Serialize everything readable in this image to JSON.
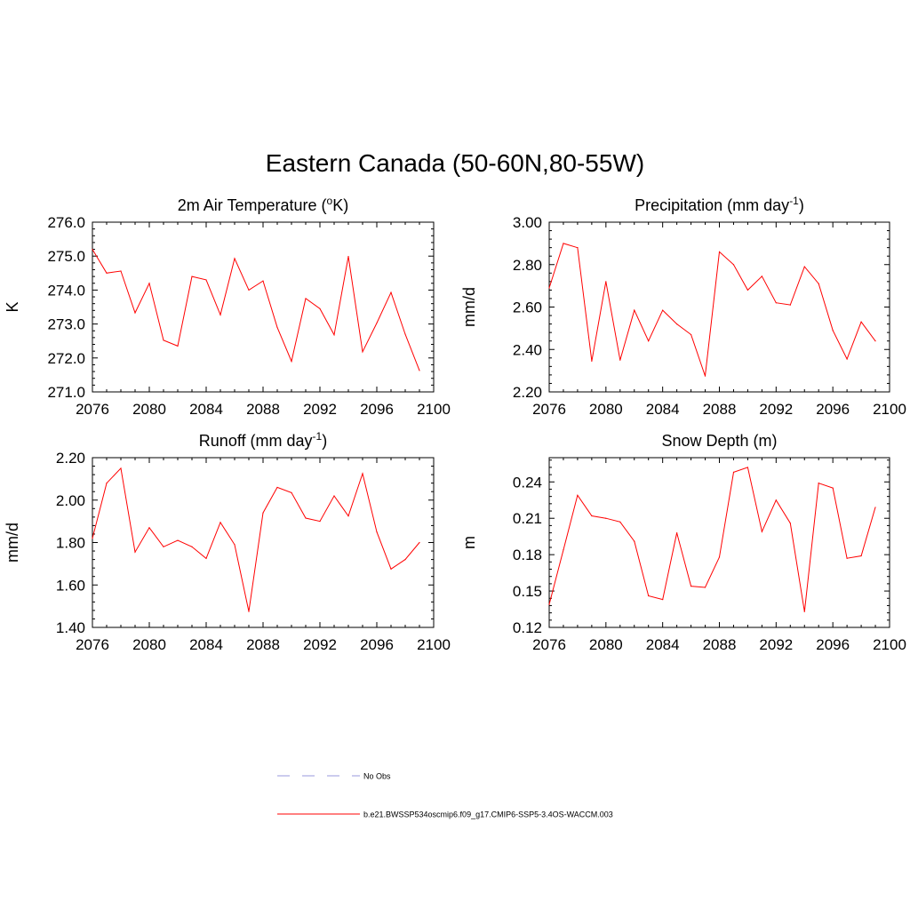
{
  "title": "Eastern Canada (50-60N,80-55W)",
  "colors": {
    "model": "#ff0000",
    "obs": "#9999dd",
    "axis": "#000000"
  },
  "legend": [
    {
      "label": "No Obs",
      "style": "dashed",
      "color": "#9999dd"
    },
    {
      "label": "b.e21.BWSSP534oscmip6.f09_g17.CMIP6-SSP5-3.4OS-WACCM.003",
      "style": "solid",
      "color": "#ff0000"
    }
  ],
  "chart_data": [
    {
      "type": "line",
      "title": "2m Air Temperature (",
      "title_sup": "o",
      "title_end": "K)",
      "ylabel": "K",
      "xlim": [
        2076,
        2100
      ],
      "ylim": [
        271.0,
        276.0
      ],
      "xticks": [
        "2076",
        "2080",
        "2084",
        "2088",
        "2092",
        "2096",
        "2100"
      ],
      "yticks": [
        "271.0",
        "272.0",
        "273.0",
        "274.0",
        "275.0",
        "276.0"
      ],
      "x": [
        2076,
        2077,
        2078,
        2079,
        2080,
        2081,
        2082,
        2083,
        2084,
        2085,
        2086,
        2087,
        2088,
        2089,
        2090,
        2091,
        2092,
        2093,
        2094,
        2095,
        2096,
        2097,
        2098,
        2099
      ],
      "values": [
        275.2,
        274.5,
        274.56,
        273.33,
        274.2,
        272.52,
        272.35,
        274.4,
        274.3,
        273.27,
        274.93,
        274.0,
        274.27,
        272.9,
        271.9,
        273.75,
        273.45,
        272.68,
        274.99,
        272.18,
        273.03,
        273.93,
        272.7,
        271.63
      ]
    },
    {
      "type": "line",
      "title": "Precipitation (mm day",
      "title_sup": "-1",
      "title_end": ")",
      "ylabel": "mm/d",
      "xlim": [
        2076,
        2100
      ],
      "ylim": [
        2.2,
        3.0
      ],
      "xticks": [
        "2076",
        "2080",
        "2084",
        "2088",
        "2092",
        "2096",
        "2100"
      ],
      "yticks": [
        "2.20",
        "2.40",
        "2.60",
        "2.80",
        "3.00"
      ],
      "x": [
        2076,
        2077,
        2078,
        2079,
        2080,
        2081,
        2082,
        2083,
        2084,
        2085,
        2086,
        2087,
        2088,
        2089,
        2090,
        2091,
        2092,
        2093,
        2094,
        2095,
        2096,
        2097,
        2098,
        2099
      ],
      "values": [
        2.69,
        2.9,
        2.88,
        2.345,
        2.72,
        2.35,
        2.585,
        2.44,
        2.585,
        2.52,
        2.47,
        2.275,
        2.86,
        2.8,
        2.68,
        2.745,
        2.62,
        2.61,
        2.79,
        2.71,
        2.49,
        2.355,
        2.53,
        2.44
      ]
    },
    {
      "type": "line",
      "title": "Runoff (mm day",
      "title_sup": "-1",
      "title_end": ")",
      "ylabel": "mm/d",
      "xlim": [
        2076,
        2100
      ],
      "ylim": [
        1.4,
        2.2
      ],
      "xticks": [
        "2076",
        "2080",
        "2084",
        "2088",
        "2092",
        "2096",
        "2100"
      ],
      "yticks": [
        "1.40",
        "1.60",
        "1.80",
        "2.00",
        "2.20"
      ],
      "x": [
        2076,
        2077,
        2078,
        2079,
        2080,
        2081,
        2082,
        2083,
        2084,
        2085,
        2086,
        2087,
        2088,
        2089,
        2090,
        2091,
        2092,
        2093,
        2094,
        2095,
        2096,
        2097,
        2098,
        2099
      ],
      "values": [
        1.82,
        2.08,
        2.15,
        1.755,
        1.87,
        1.78,
        1.81,
        1.78,
        1.725,
        1.895,
        1.79,
        1.475,
        1.94,
        2.06,
        2.035,
        1.915,
        1.9,
        2.02,
        1.925,
        2.125,
        1.85,
        1.675,
        1.72,
        1.8
      ]
    },
    {
      "type": "line",
      "title": "Snow Depth (m)",
      "title_sup": "",
      "title_end": "",
      "ylabel": "m",
      "xlim": [
        2076,
        2100
      ],
      "ylim": [
        0.12,
        0.26
      ],
      "xticks": [
        "2076",
        "2080",
        "2084",
        "2088",
        "2092",
        "2096",
        "2100"
      ],
      "yticks": [
        "0.12",
        "0.15",
        "0.18",
        "0.21",
        "0.24"
      ],
      "x": [
        2076,
        2077,
        2078,
        2079,
        2080,
        2081,
        2082,
        2083,
        2084,
        2085,
        2086,
        2087,
        2088,
        2089,
        2090,
        2091,
        2092,
        2093,
        2094,
        2095,
        2096,
        2097,
        2098,
        2099
      ],
      "values": [
        0.139,
        0.184,
        0.229,
        0.212,
        0.21,
        0.207,
        0.191,
        0.146,
        0.143,
        0.198,
        0.154,
        0.153,
        0.178,
        0.248,
        0.252,
        0.199,
        0.225,
        0.206,
        0.133,
        0.239,
        0.235,
        0.177,
        0.179,
        0.219
      ]
    }
  ]
}
